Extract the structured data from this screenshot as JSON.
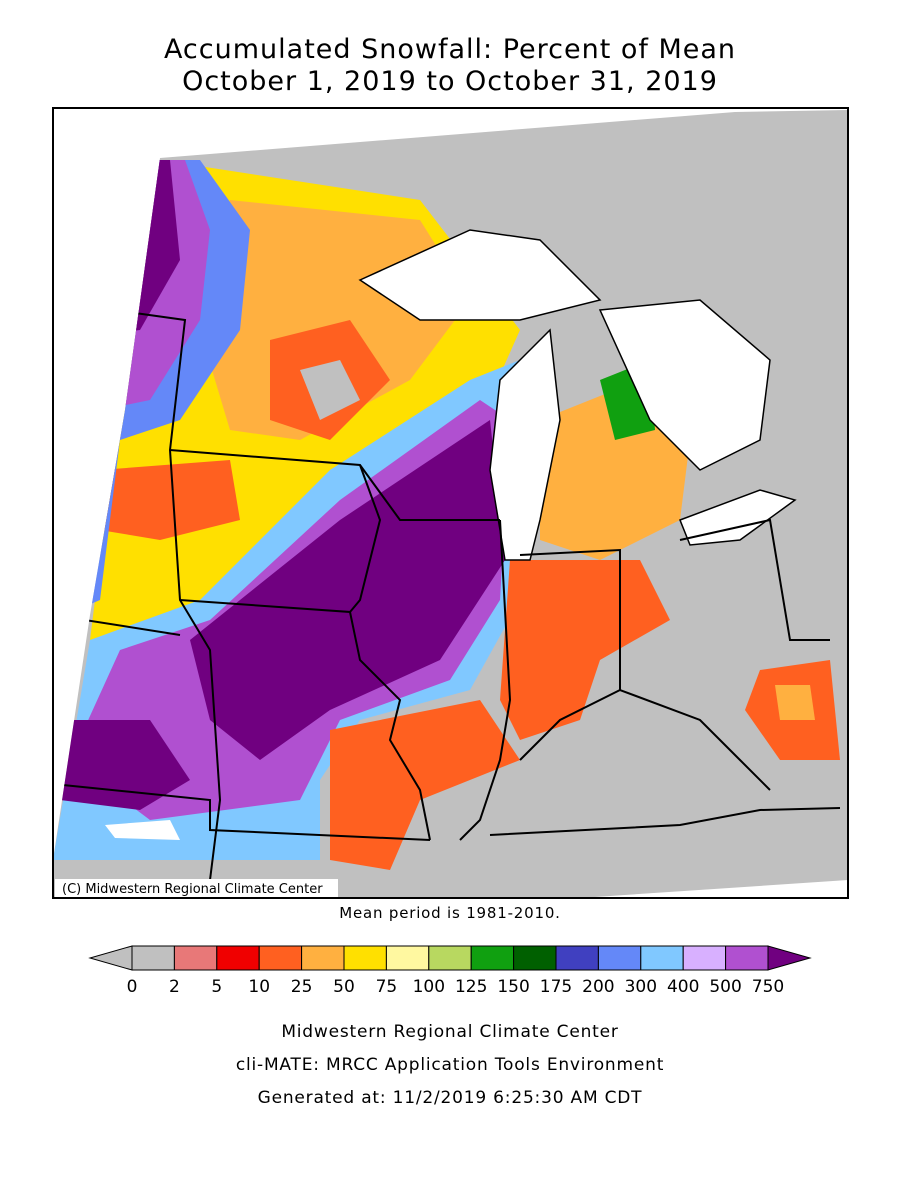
{
  "header": {
    "title_line1": "Accumulated Snowfall: Percent of Mean",
    "title_line2": "October 1, 2019 to October 31, 2019"
  },
  "map": {
    "copyright": "(C) Midwestern Regional Climate Center"
  },
  "mean_period": "Mean period is 1981-2010.",
  "colorbar": {
    "labels": [
      0,
      2,
      5,
      10,
      25,
      50,
      75,
      100,
      125,
      150,
      175,
      200,
      300,
      400,
      500,
      750
    ],
    "colors": [
      "#c0c0c0",
      "#c0c0c0",
      "#e87878",
      "#f00000",
      "#ff6020",
      "#ffb040",
      "#ffe000",
      "#fff8a0",
      "#b8d860",
      "#10a010",
      "#006000",
      "#4040c0",
      "#6488f8",
      "#80c8ff",
      "#d8b0ff",
      "#b050d0",
      "#700080"
    ]
  },
  "footer": {
    "line1": "Midwestern Regional Climate Center",
    "line2": "cli-MATE: MRCC Application Tools Environment",
    "line3": "Generated at: 11/2/2019 6:25:30 AM CDT"
  }
}
